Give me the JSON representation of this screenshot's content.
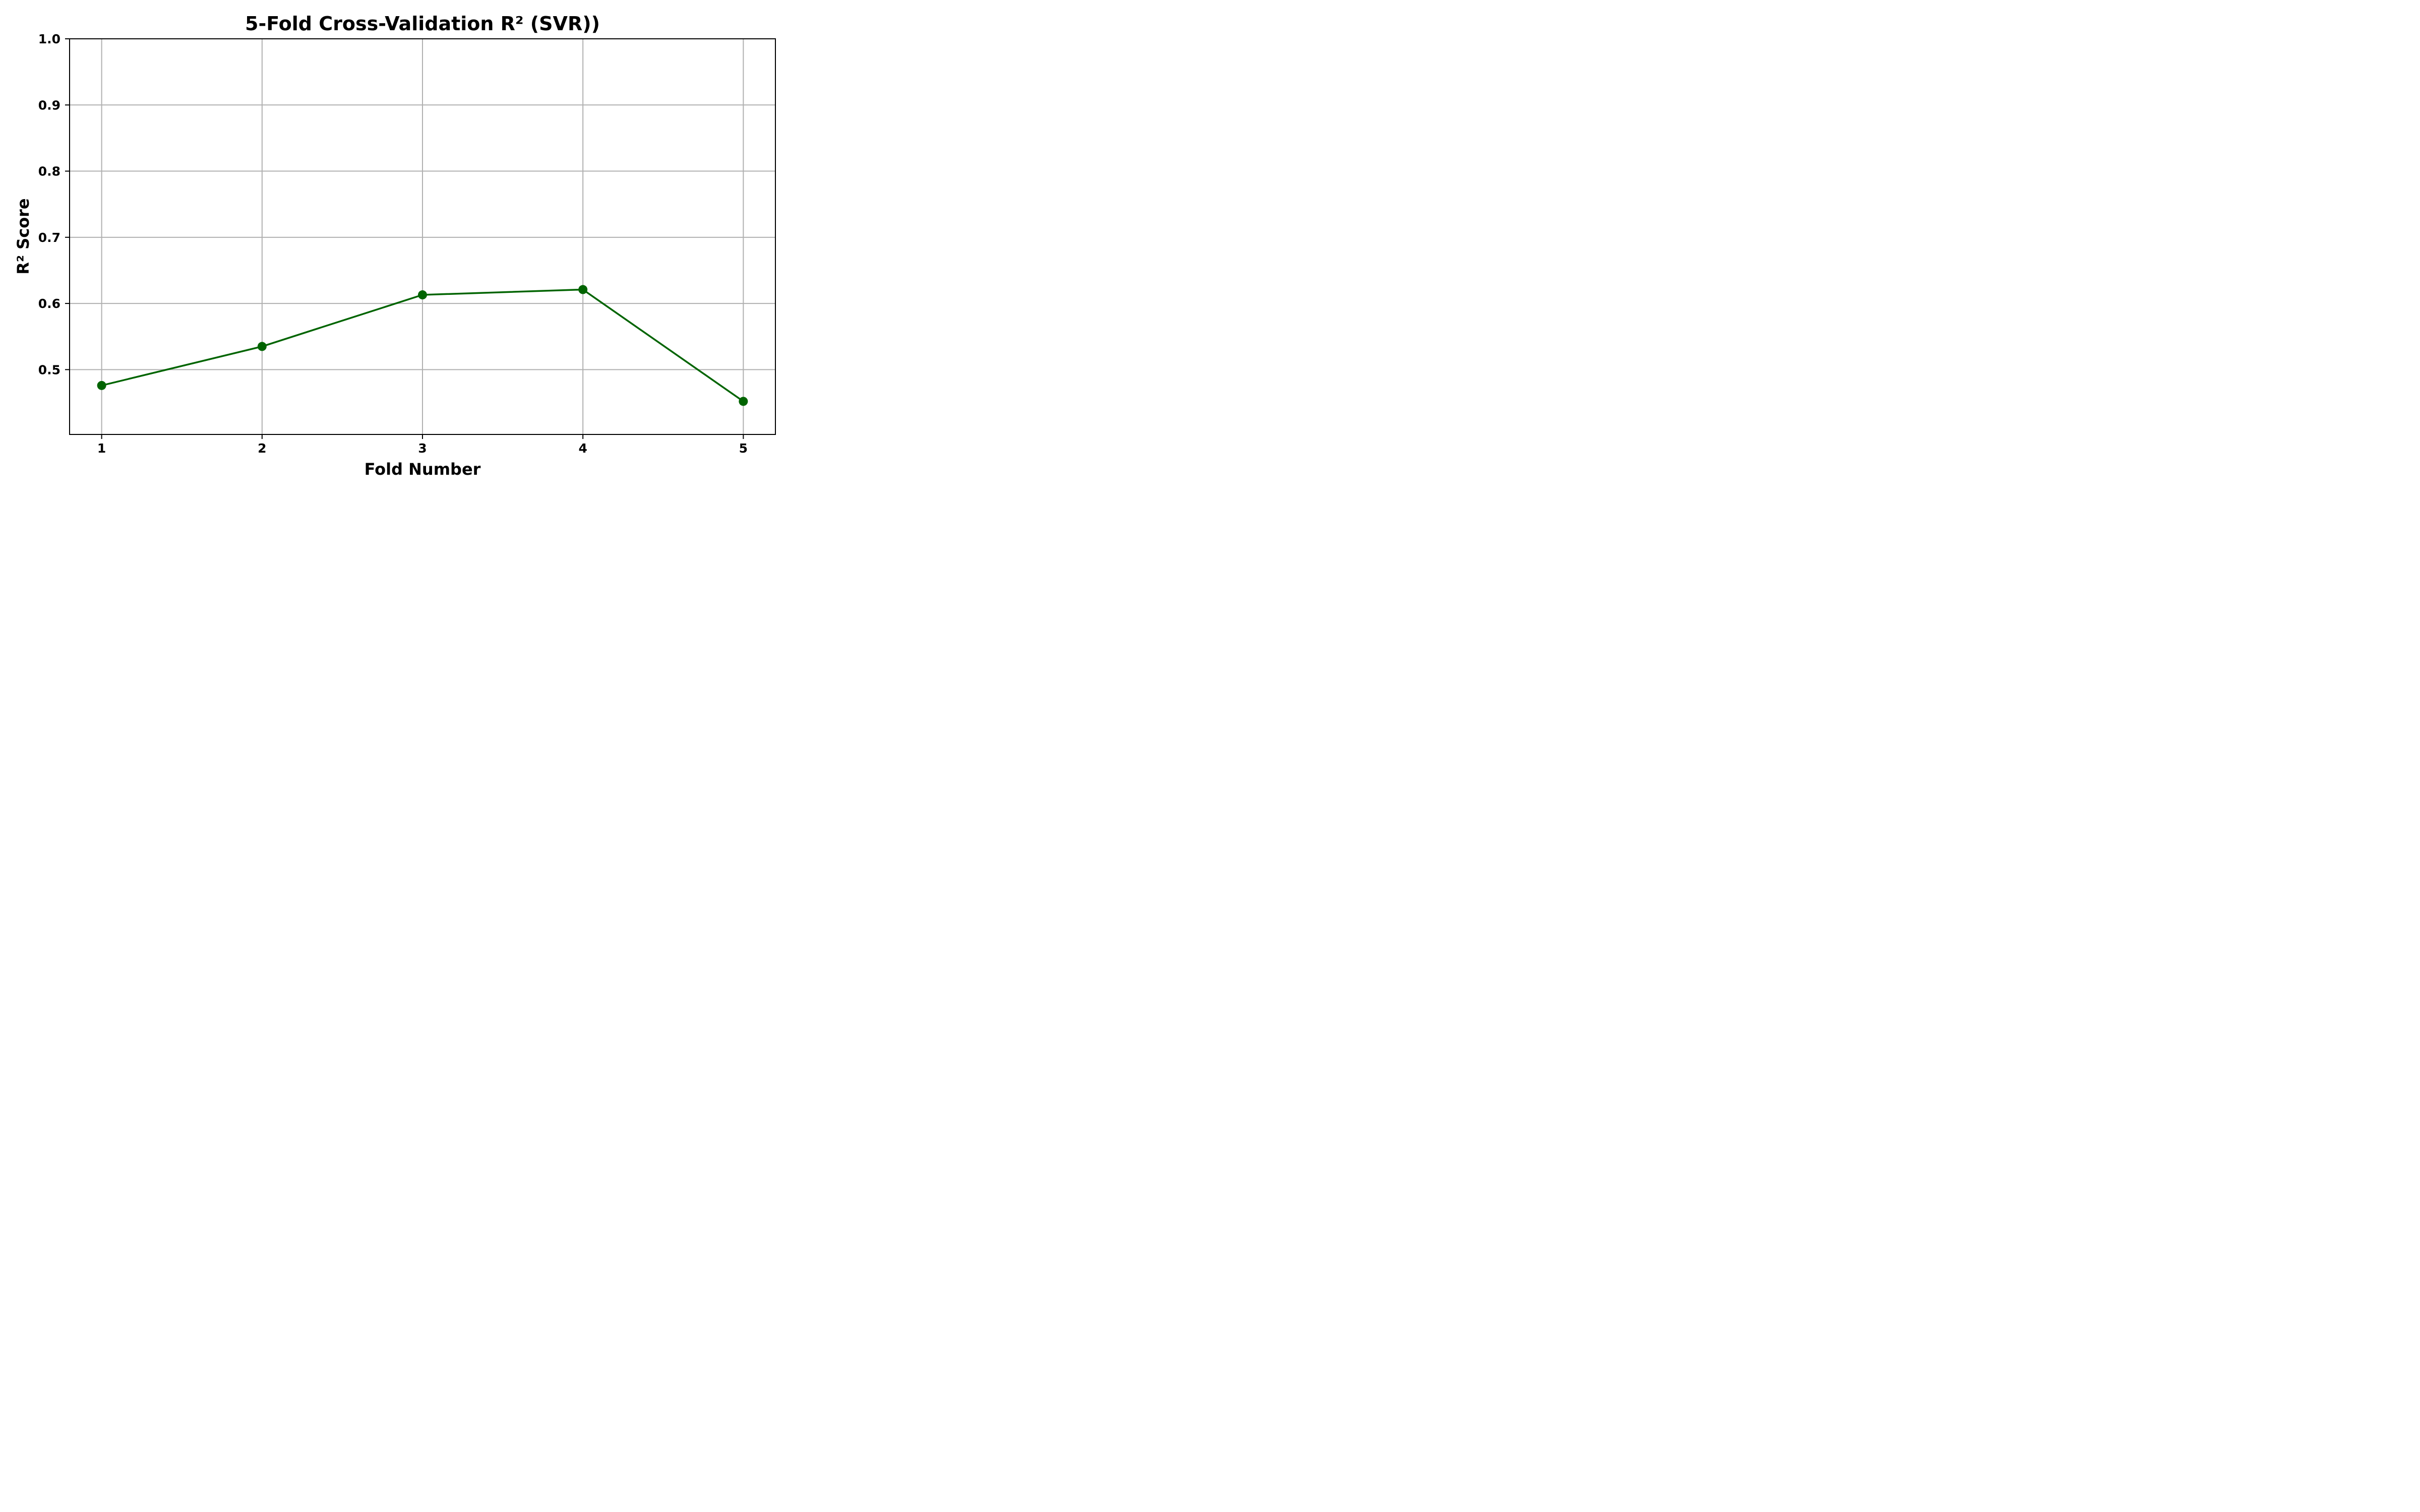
{
  "chart_data": {
    "type": "line",
    "title": "5-Fold Cross-Validation R² (SVR))",
    "xlabel": "Fold Number",
    "ylabel": "R² Score",
    "x": [
      1,
      2,
      3,
      4,
      5
    ],
    "x_tick_labels": [
      "1",
      "2",
      "3",
      "4",
      "5"
    ],
    "y_ticks": [
      0.5,
      0.6,
      0.7,
      0.8,
      0.9,
      1.0
    ],
    "y_tick_labels": [
      "0.5",
      "0.6",
      "0.7",
      "0.8",
      "0.9",
      "1.0"
    ],
    "xlim": [
      0.8,
      5.2
    ],
    "ylim": [
      0.402,
      1.0
    ],
    "grid": true,
    "series": [
      {
        "values": [
          0.476,
          0.535,
          0.613,
          0.621,
          0.452
        ],
        "color": "#006400",
        "marker": "circle"
      }
    ]
  },
  "colors": {
    "grid": "#b0b0b0",
    "axes": "#000000",
    "line": "#006400"
  }
}
